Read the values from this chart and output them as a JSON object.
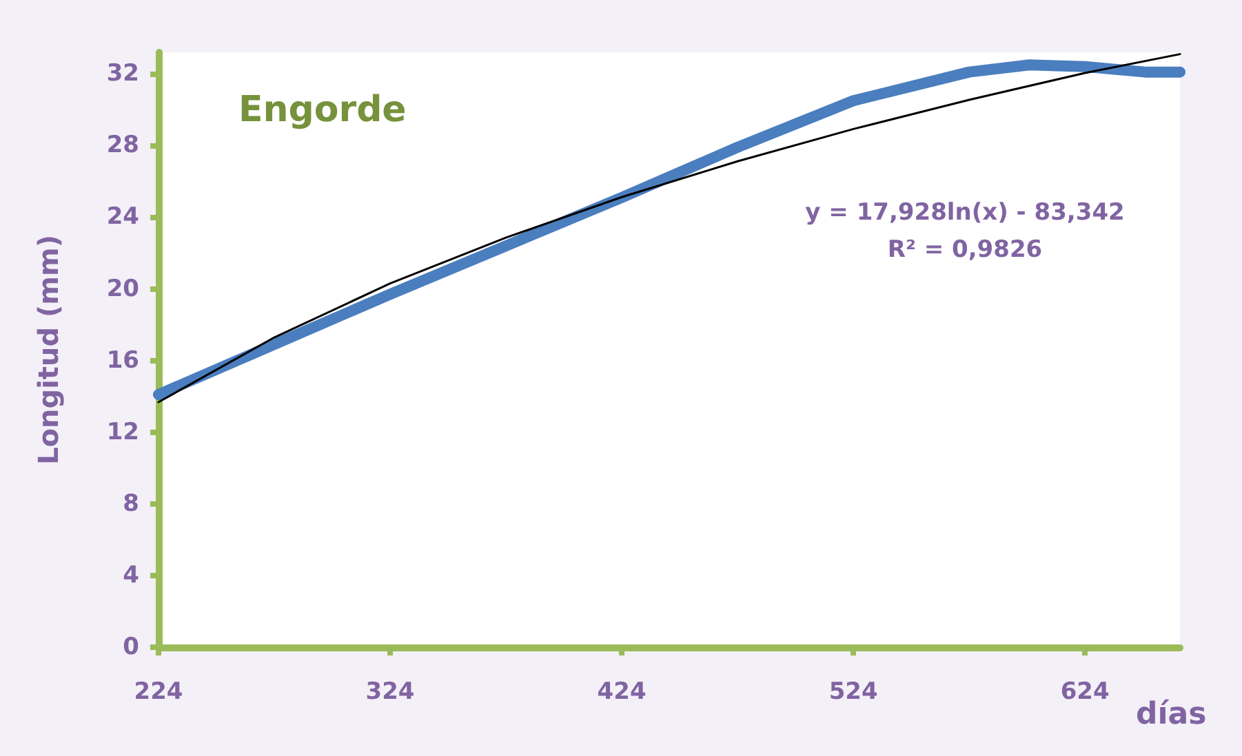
{
  "chart_data": {
    "type": "line",
    "title": "Engorde",
    "xlabel": "días",
    "ylabel": "Longitud (mm)",
    "x": [
      224,
      274,
      324,
      374,
      424,
      474,
      524,
      574,
      600,
      624,
      650,
      665
    ],
    "series": [
      {
        "color": "#4a7ebf",
        "values": [
          14.1,
          16.9,
          19.7,
          22.4,
          25.1,
          27.9,
          30.5,
          32.1,
          32.5,
          32.4,
          32.1,
          32.1
        ]
      },
      {
        "color": "#000000",
        "x": [
          224,
          274,
          324,
          374,
          424,
          474,
          524,
          574,
          624,
          665
        ],
        "values": [
          13.68,
          17.29,
          20.3,
          22.86,
          25.12,
          27.12,
          28.92,
          30.55,
          32.05,
          33.1
        ]
      }
    ],
    "annotations": [
      "y = 17,928ln(x) - 83,342",
      "R² = 0,9826"
    ],
    "xlim": [
      224,
      665
    ],
    "xticks": [
      224,
      324,
      424,
      524,
      624
    ],
    "ylim": [
      0,
      33.2
    ],
    "yticks": [
      0,
      4,
      8,
      12,
      16,
      20,
      24,
      28,
      32
    ],
    "grid": false,
    "marker": "none",
    "line_style": "solid"
  }
}
